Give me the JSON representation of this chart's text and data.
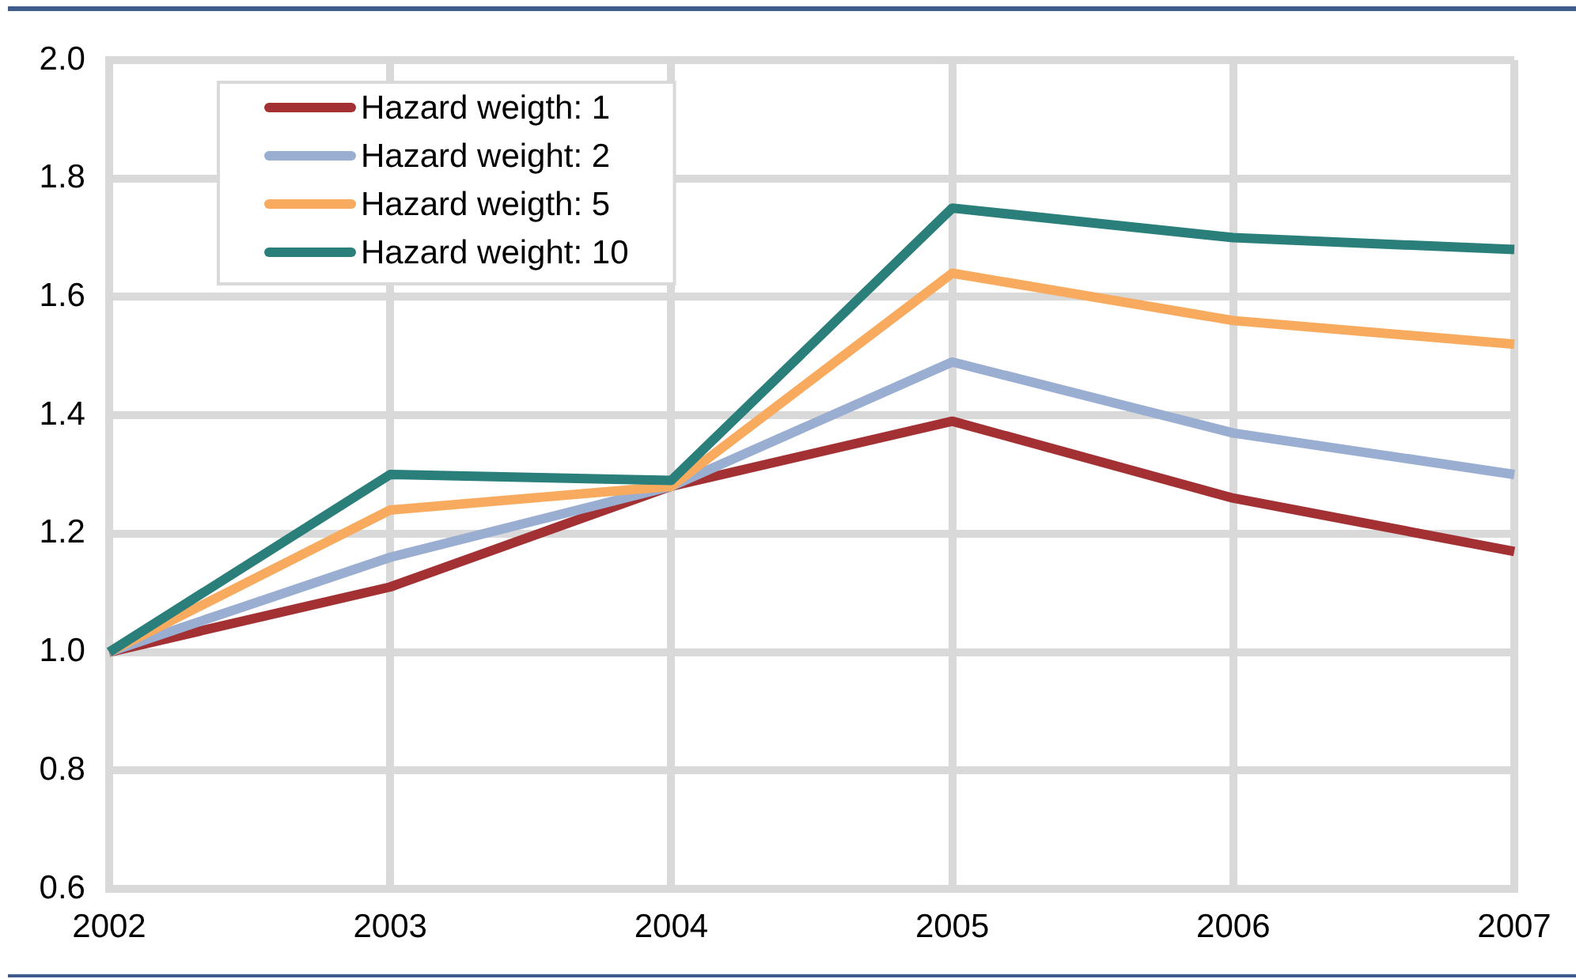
{
  "chart_data": {
    "type": "line",
    "categories": [
      "2002",
      "2003",
      "2004",
      "2005",
      "2006",
      "2007"
    ],
    "series": [
      {
        "name": "Hazard weigth: 1",
        "color": "#a33133",
        "values": [
          1.0,
          1.11,
          1.28,
          1.39,
          1.26,
          1.17
        ]
      },
      {
        "name": "Hazard weight: 2",
        "color": "#9aaed1",
        "values": [
          1.0,
          1.16,
          1.28,
          1.49,
          1.37,
          1.3
        ]
      },
      {
        "name": "Hazard weigth: 5",
        "color": "#f8ab5e",
        "values": [
          1.0,
          1.24,
          1.28,
          1.64,
          1.56,
          1.52
        ]
      },
      {
        "name": "Hazard weight: 10",
        "color": "#2b7f7b",
        "values": [
          1.0,
          1.3,
          1.29,
          1.75,
          1.7,
          1.68
        ]
      }
    ],
    "ylim": [
      0.6,
      2.0
    ],
    "yticks": [
      0.6,
      0.8,
      {
        "value": 1,
        "label": "1.0"
      },
      1.2,
      1.4,
      1.6,
      1.8,
      {
        "value": 2,
        "label": "2.0"
      }
    ],
    "grid": true,
    "legend": "top left",
    "marker": "none",
    "line_style": "solid"
  }
}
